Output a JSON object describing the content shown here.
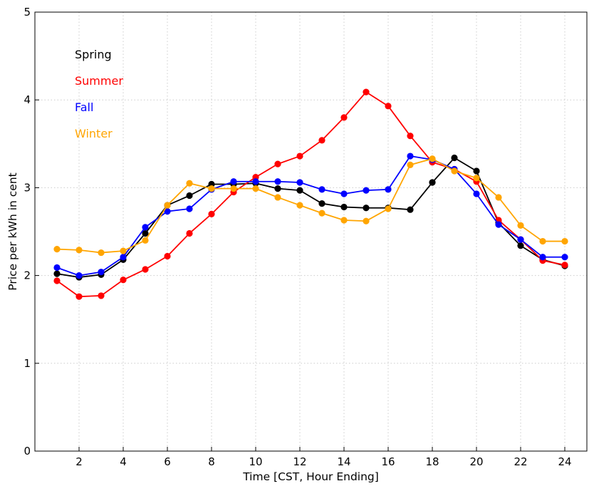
{
  "chart_data": {
    "type": "line",
    "title": "",
    "xlabel": "Time [CST, Hour Ending]",
    "ylabel": "Price per kWh in cent",
    "xlim": [
      0,
      25
    ],
    "ylim": [
      0,
      5
    ],
    "xticks": [
      2,
      4,
      6,
      8,
      10,
      12,
      14,
      16,
      18,
      20,
      22,
      24
    ],
    "yticks": [
      0,
      1,
      2,
      3,
      4,
      5
    ],
    "grid": true,
    "legend_position": "top-left",
    "x": [
      1,
      2,
      3,
      4,
      5,
      6,
      7,
      8,
      9,
      10,
      11,
      12,
      13,
      14,
      15,
      16,
      17,
      18,
      19,
      20,
      21,
      22,
      23,
      24
    ],
    "series": [
      {
        "name": "Spring",
        "color": "#000000",
        "values": [
          2.02,
          1.98,
          2.01,
          2.18,
          2.48,
          2.8,
          2.91,
          3.04,
          3.04,
          3.05,
          2.99,
          2.97,
          2.82,
          2.78,
          2.77,
          2.77,
          2.75,
          3.06,
          3.34,
          3.19,
          2.6,
          2.34,
          2.18,
          2.11
        ]
      },
      {
        "name": "Summer",
        "color": "#ff0000",
        "values": [
          1.94,
          1.76,
          1.77,
          1.95,
          2.07,
          2.22,
          2.48,
          2.7,
          2.95,
          3.12,
          3.27,
          3.36,
          3.54,
          3.8,
          4.09,
          3.93,
          3.59,
          3.29,
          3.21,
          3.07,
          2.63,
          2.41,
          2.17,
          2.12
        ]
      },
      {
        "name": "Fall",
        "color": "#0000ff",
        "values": [
          2.09,
          2.0,
          2.04,
          2.21,
          2.55,
          2.73,
          2.76,
          2.98,
          3.07,
          3.07,
          3.07,
          3.06,
          2.98,
          2.93,
          2.97,
          2.98,
          3.36,
          3.32,
          3.21,
          2.93,
          2.58,
          2.41,
          2.21,
          2.21
        ]
      },
      {
        "name": "Winter",
        "color": "#ffa500",
        "values": [
          2.3,
          2.29,
          2.26,
          2.28,
          2.4,
          2.8,
          3.05,
          2.99,
          2.99,
          2.99,
          2.89,
          2.8,
          2.71,
          2.63,
          2.62,
          2.76,
          3.26,
          3.33,
          3.19,
          3.11,
          2.89,
          2.57,
          2.39,
          2.39
        ]
      }
    ]
  }
}
